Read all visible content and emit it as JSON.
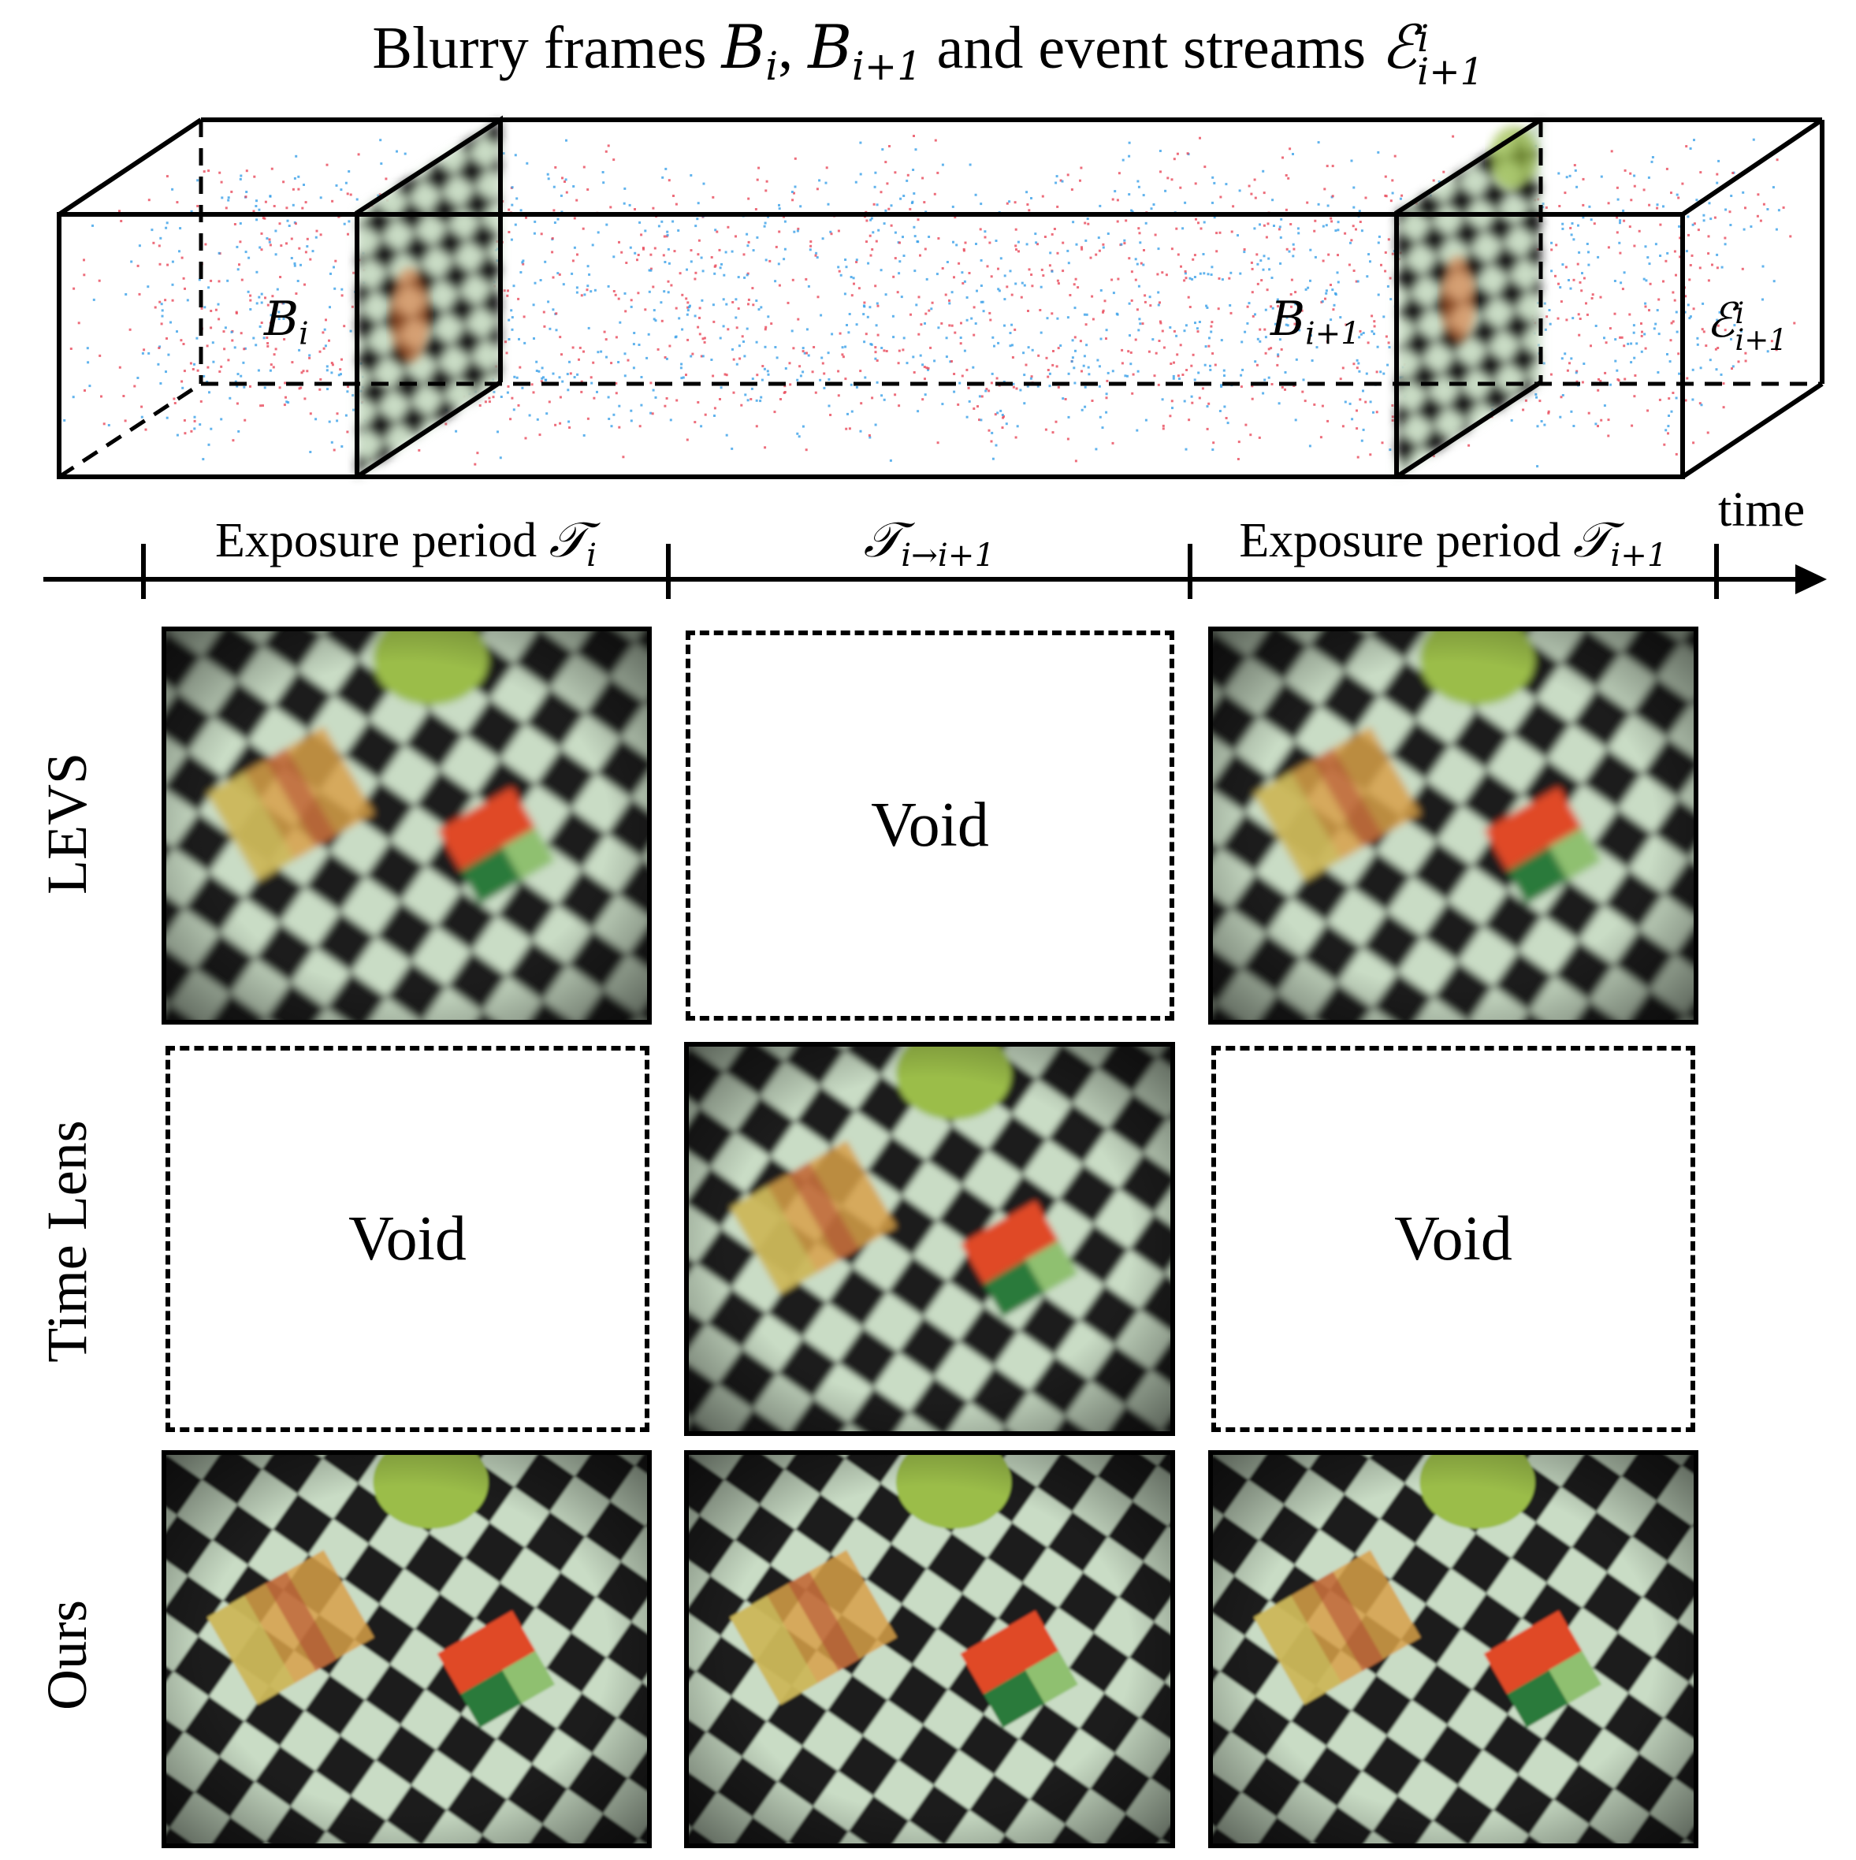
{
  "figure": {
    "title_prefix": "Blurry frames ",
    "title_frames": "B",
    "title_sub_i": "i",
    "title_sep": ", ",
    "title_sub_i1": "i+1",
    "title_middle": " and event streams ",
    "title_events": "ℰ",
    "title_events_sup": "i",
    "title_events_sub": "i+1",
    "box_labels": {
      "frame_i": "B",
      "frame_i_sub": "i",
      "frame_i1": "B",
      "frame_i1_sub": "i+1",
      "events": "ℰ",
      "events_sup": "i",
      "events_sub": "i+1"
    },
    "time_label": "time",
    "periods": [
      {
        "text": "Exposure period ",
        "sym": "𝒯",
        "sub": "i"
      },
      {
        "text": "",
        "sym": "𝒯",
        "sub": "i→i+1"
      },
      {
        "text": "Exposure period ",
        "sym": "𝒯",
        "sub": "i+1"
      }
    ],
    "rows": [
      {
        "label": "LEVS",
        "cells": [
          "image",
          "Void",
          "image"
        ]
      },
      {
        "label": "Time Lens",
        "cells": [
          "Void",
          "image",
          "Void"
        ]
      },
      {
        "label": "Ours",
        "cells": [
          "image",
          "image",
          "image"
        ]
      }
    ],
    "colors": {
      "positive_events": "#e8485a",
      "negative_events": "#3aa0e8",
      "board_light": "#c9dcc5",
      "board_dark": "#1a1c1a",
      "ball": "#9bbd4a"
    }
  }
}
